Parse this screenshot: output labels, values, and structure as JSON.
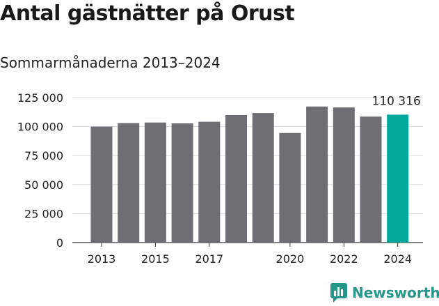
{
  "title": "Antal gästnätter på Orust",
  "subtitle": "Sommarmånaderna 2013–2024",
  "brand": "Newsworthy",
  "colors": {
    "bar": "#6f6e74",
    "highlight": "#00a99a",
    "grid": "#dddddd",
    "brand": "#26968b"
  },
  "chart_data": {
    "type": "bar",
    "categories": [
      "2013",
      "2014",
      "2015",
      "2016",
      "2017",
      "2018",
      "2019",
      "2020",
      "2021",
      "2022",
      "2023",
      "2024"
    ],
    "values": [
      100000,
      103000,
      103500,
      102800,
      104200,
      110000,
      111700,
      94500,
      117300,
      116500,
      108600,
      110316
    ],
    "highlight_index": 11,
    "x_tick_labels": [
      "2013",
      "2015",
      "2017",
      "2020",
      "2022",
      "2024"
    ],
    "y_ticks": [
      0,
      25000,
      50000,
      75000,
      100000,
      125000
    ],
    "y_tick_labels": [
      "0",
      "25 000",
      "50 000",
      "75 000",
      "100 000",
      "125 000"
    ],
    "ylim": [
      0,
      125000
    ],
    "data_label": "110 316",
    "grid": true,
    "legend": "none"
  }
}
